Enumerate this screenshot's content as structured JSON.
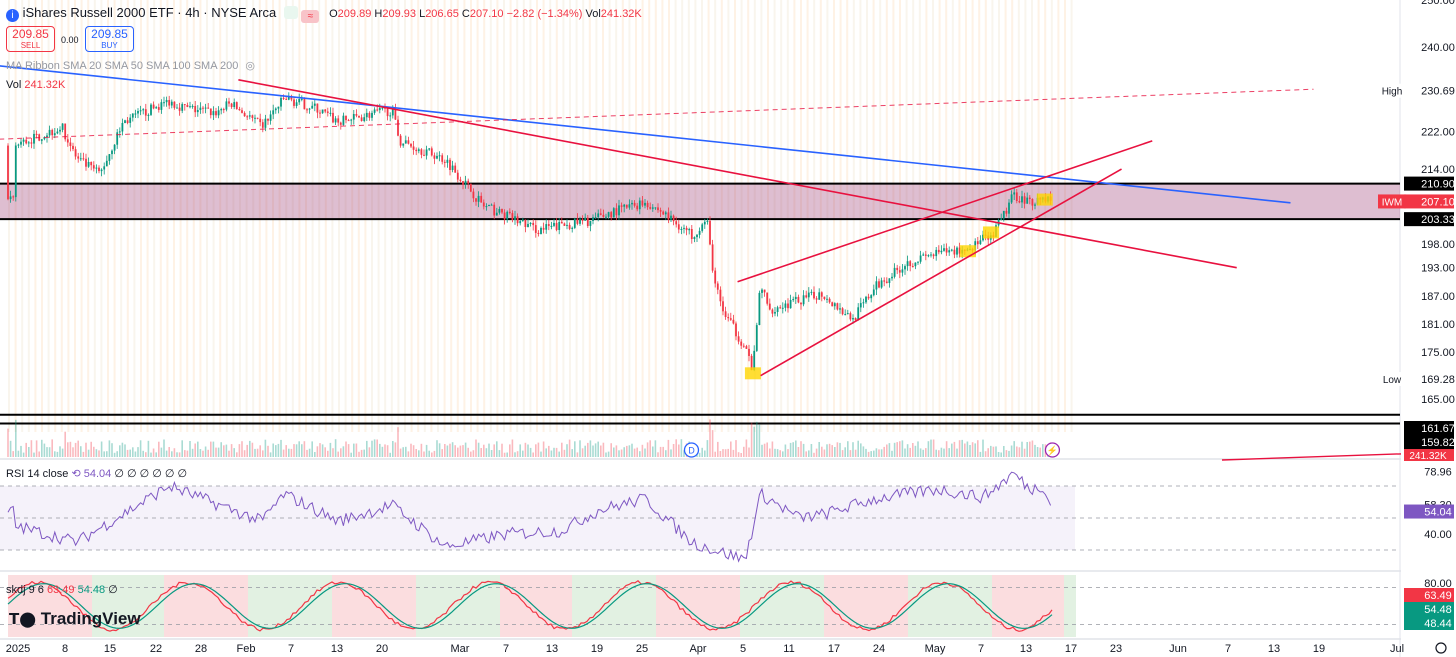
{
  "header": {
    "info_icon": "info-circle-icon",
    "title": "iShares Russell 2000 ETF · 4h · NYSE Arca",
    "open_label": "O",
    "open": "209.89",
    "high_label": "H",
    "high": "209.93",
    "low_label": "L",
    "low": "206.65",
    "close_label": "C",
    "close": "207.10",
    "change": "−2.82 (−1.34%)",
    "vol_label": "Vol",
    "vol": "241.32K"
  },
  "trade": {
    "sell_price": "209.85",
    "sell_label": "SELL",
    "spread": "0.00",
    "buy_price": "209.85",
    "buy_label": "BUY"
  },
  "indicators": {
    "ma_ribbon": "MA Ribbon SMA 20 SMA 50 SMA 100 SMA 200",
    "vol_label": "Vol",
    "vol_value": "241.32K",
    "rsi_label": "RSI 14 close",
    "rsi_value": "54.04",
    "rsi_extra": "∅ ∅ ∅ ∅ ∅ ∅",
    "skdj_label": "skdj 9 6",
    "skdj_k": "63.49",
    "skdj_d": "54.48",
    "skdj_extra": "∅"
  },
  "branding": {
    "logo": "TradingView"
  },
  "colors": {
    "up": "#089981",
    "down": "#f23645",
    "trend_red": "#e8113f",
    "trend_blue": "#2962ff",
    "zone": "#a0467a",
    "rsi": "#7e57c2"
  },
  "chart_data": [
    {
      "type": "candlestick",
      "symbol": "IWM",
      "timeframe": "4h",
      "y_ticks": [
        "250.00",
        "240.00",
        "230.69",
        "222.00",
        "214.00",
        "210.90",
        "207.10",
        "203.33",
        "198.00",
        "193.00",
        "187.00",
        "181.00",
        "175.00",
        "169.28",
        "165.00",
        "161.67",
        "159.82"
      ],
      "y_range": [
        158,
        250
      ],
      "price_labels": [
        {
          "text": "High",
          "value": "230.69"
        },
        {
          "text": "IWM",
          "value": "207.10"
        },
        {
          "text": "Low",
          "value": "169.28"
        },
        {
          "text": "",
          "value": "210.90"
        },
        {
          "text": "",
          "value": "203.33"
        },
        {
          "text": "",
          "value": "161.67"
        },
        {
          "text": "",
          "value": "159.82"
        },
        {
          "text": "",
          "value": "241.32K"
        }
      ],
      "zone": [
        203.33,
        210.9
      ],
      "lower_band": [
        159.82,
        161.67
      ],
      "x_labels": [
        "2025",
        "8",
        "15",
        "22",
        "28",
        "Feb",
        "7",
        "13",
        "20",
        "Mar",
        "7",
        "13",
        "19",
        "25",
        "Apr",
        "5",
        "11",
        "17",
        "24",
        "May",
        "7",
        "13",
        "17",
        "23",
        "Jun",
        "7",
        "13",
        "19",
        "Jul"
      ],
      "markers": [
        "D",
        "⚡"
      ],
      "anchors": [
        [
          "2025-01-02",
          219
        ],
        [
          "2025-01-08",
          223
        ],
        [
          "2025-01-10",
          216
        ],
        [
          "2025-01-13",
          213
        ],
        [
          "2025-01-16",
          224
        ],
        [
          "2025-01-22",
          228.5
        ],
        [
          "2025-01-24",
          227
        ],
        [
          "2025-01-28",
          226
        ],
        [
          "2025-01-30",
          228
        ],
        [
          "2025-02-03",
          223
        ],
        [
          "2025-02-06",
          229
        ],
        [
          "2025-02-10",
          227
        ],
        [
          "2025-02-13",
          224
        ],
        [
          "2025-02-18",
          226
        ],
        [
          "2025-02-20",
          226.5
        ],
        [
          "2025-02-21",
          220
        ],
        [
          "2025-02-24",
          218
        ],
        [
          "2025-02-27",
          216
        ],
        [
          "2025-02-28",
          214
        ],
        [
          "2025-03-04",
          206
        ],
        [
          "2025-03-07",
          204
        ],
        [
          "2025-03-11",
          201
        ],
        [
          "2025-03-14",
          202
        ],
        [
          "2025-03-18",
          203
        ],
        [
          "2025-03-21",
          205
        ],
        [
          "2025-03-25",
          207
        ],
        [
          "2025-03-27",
          205
        ],
        [
          "2025-03-31",
          200
        ],
        [
          "2025-04-02",
          203
        ],
        [
          "2025-04-03",
          190
        ],
        [
          "2025-04-04",
          184
        ],
        [
          "2025-04-07",
          176
        ],
        [
          "2025-04-08",
          171
        ],
        [
          "2025-04-09",
          190
        ],
        [
          "2025-04-10",
          184
        ],
        [
          "2025-04-14",
          186
        ],
        [
          "2025-04-17",
          187.5
        ],
        [
          "2025-04-21",
          182
        ],
        [
          "2025-04-24",
          189
        ],
        [
          "2025-04-28",
          194
        ],
        [
          "2025-05-02",
          196
        ],
        [
          "2025-05-06",
          197
        ],
        [
          "2025-05-08",
          199
        ],
        [
          "2025-05-09",
          199
        ],
        [
          "2025-05-12",
          208.5
        ],
        [
          "2025-05-14",
          207
        ],
        [
          "2025-05-16",
          208
        ],
        [
          "2025-05-17",
          207.1
        ]
      ],
      "trendlines": [
        {
          "color": "blue",
          "from": [
            "2024-12-25",
            237
          ],
          "to": [
            "2025-06-17",
            206.8
          ]
        },
        {
          "color": "red",
          "from": [
            "2025-01-31",
            233
          ],
          "to": [
            "2025-06-10",
            193
          ]
        },
        {
          "color": "red",
          "from": [
            "2025-04-09",
            170
          ],
          "to": [
            "2025-05-26",
            214
          ]
        },
        {
          "color": "red",
          "from": [
            "2025-04-06",
            190
          ],
          "to": [
            "2025-05-30",
            220
          ]
        },
        {
          "color": "red-dashed",
          "from": [
            "2024-12-25",
            220
          ],
          "to": [
            "2025-06-20",
            231
          ]
        }
      ],
      "highlights": [
        [
          "2025-04-08",
          170.5
        ],
        [
          "2025-05-06",
          196.5
        ],
        [
          "2025-05-09",
          200.5
        ],
        [
          "2025-05-16",
          207.5
        ]
      ]
    },
    {
      "type": "line",
      "name": "RSI 14 close",
      "y_ticks": [
        "78.96",
        "58.30",
        "54.04",
        "40.00"
      ],
      "levels": [
        70,
        50,
        30
      ],
      "y_range": [
        20,
        85
      ],
      "anchors": [
        [
          "2025-01-02",
          45
        ],
        [
          "2025-01-10",
          35
        ],
        [
          "2025-01-22",
          70
        ],
        [
          "2025-02-03",
          48
        ],
        [
          "2025-02-06",
          65
        ],
        [
          "2025-02-13",
          48
        ],
        [
          "2025-02-20",
          58
        ],
        [
          "2025-02-27",
          32
        ],
        [
          "2025-03-07",
          40
        ],
        [
          "2025-03-14",
          42
        ],
        [
          "2025-03-19",
          55
        ],
        [
          "2025-03-25",
          62
        ],
        [
          "2025-03-31",
          35
        ],
        [
          "2025-04-03",
          30
        ],
        [
          "2025-04-07",
          24
        ],
        [
          "2025-04-09",
          65
        ],
        [
          "2025-04-14",
          50
        ],
        [
          "2025-04-17",
          52
        ],
        [
          "2025-04-24",
          62
        ],
        [
          "2025-05-02",
          68
        ],
        [
          "2025-05-08",
          63
        ],
        [
          "2025-05-12",
          78
        ],
        [
          "2025-05-14",
          68
        ],
        [
          "2025-05-16",
          70
        ],
        [
          "2025-05-17",
          54.04
        ]
      ]
    },
    {
      "type": "line",
      "name": "skdj 9 6",
      "y_ticks": [
        "80.00",
        "63.49",
        "54.48",
        "48.44"
      ],
      "levels": [
        80,
        20
      ],
      "y_range": [
        0,
        100
      ],
      "series": [
        {
          "name": "K",
          "value": 63.49
        },
        {
          "name": "D",
          "value": 54.48
        }
      ]
    }
  ]
}
